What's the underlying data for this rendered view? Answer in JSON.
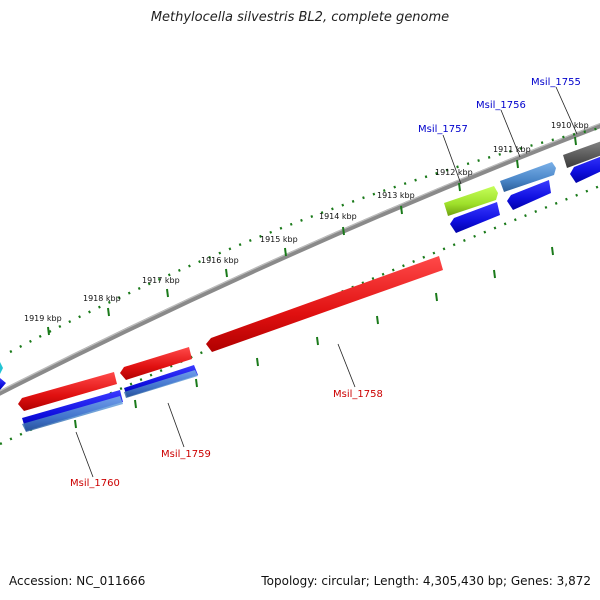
{
  "title": "Methylocella silvestris BL2, complete genome",
  "accession": "Accession: NC_011666",
  "summary": "Topology: circular; Length: 4,305,430 bp; Genes: 3,872",
  "ticks": [
    "1919 kbp",
    "1918 kbp",
    "1917 kbp",
    "1916 kbp",
    "1915 kbp",
    "1914 kbp",
    "1913 kbp",
    "1912 kbp",
    "1911 kbp",
    "1910 kbp"
  ],
  "genes": {
    "forward": [
      "Msil_1755",
      "Msil_1756",
      "Msil_1757"
    ],
    "reverse": [
      "Msil_1758",
      "Msil_1759",
      "Msil_1760"
    ]
  },
  "colors": {
    "forward_label": "#0000cc",
    "reverse_label": "#cc0000",
    "backbone": "#7a7a7a",
    "tick": "#1a7a1a",
    "cds_red": "#e11111",
    "cds_blue": "#1010e0",
    "cds_steel": "#4a86c8",
    "cds_green": "#9ee02a",
    "cds_gray": "#5a5a5a",
    "cds_cyan": "#22c4d4"
  }
}
